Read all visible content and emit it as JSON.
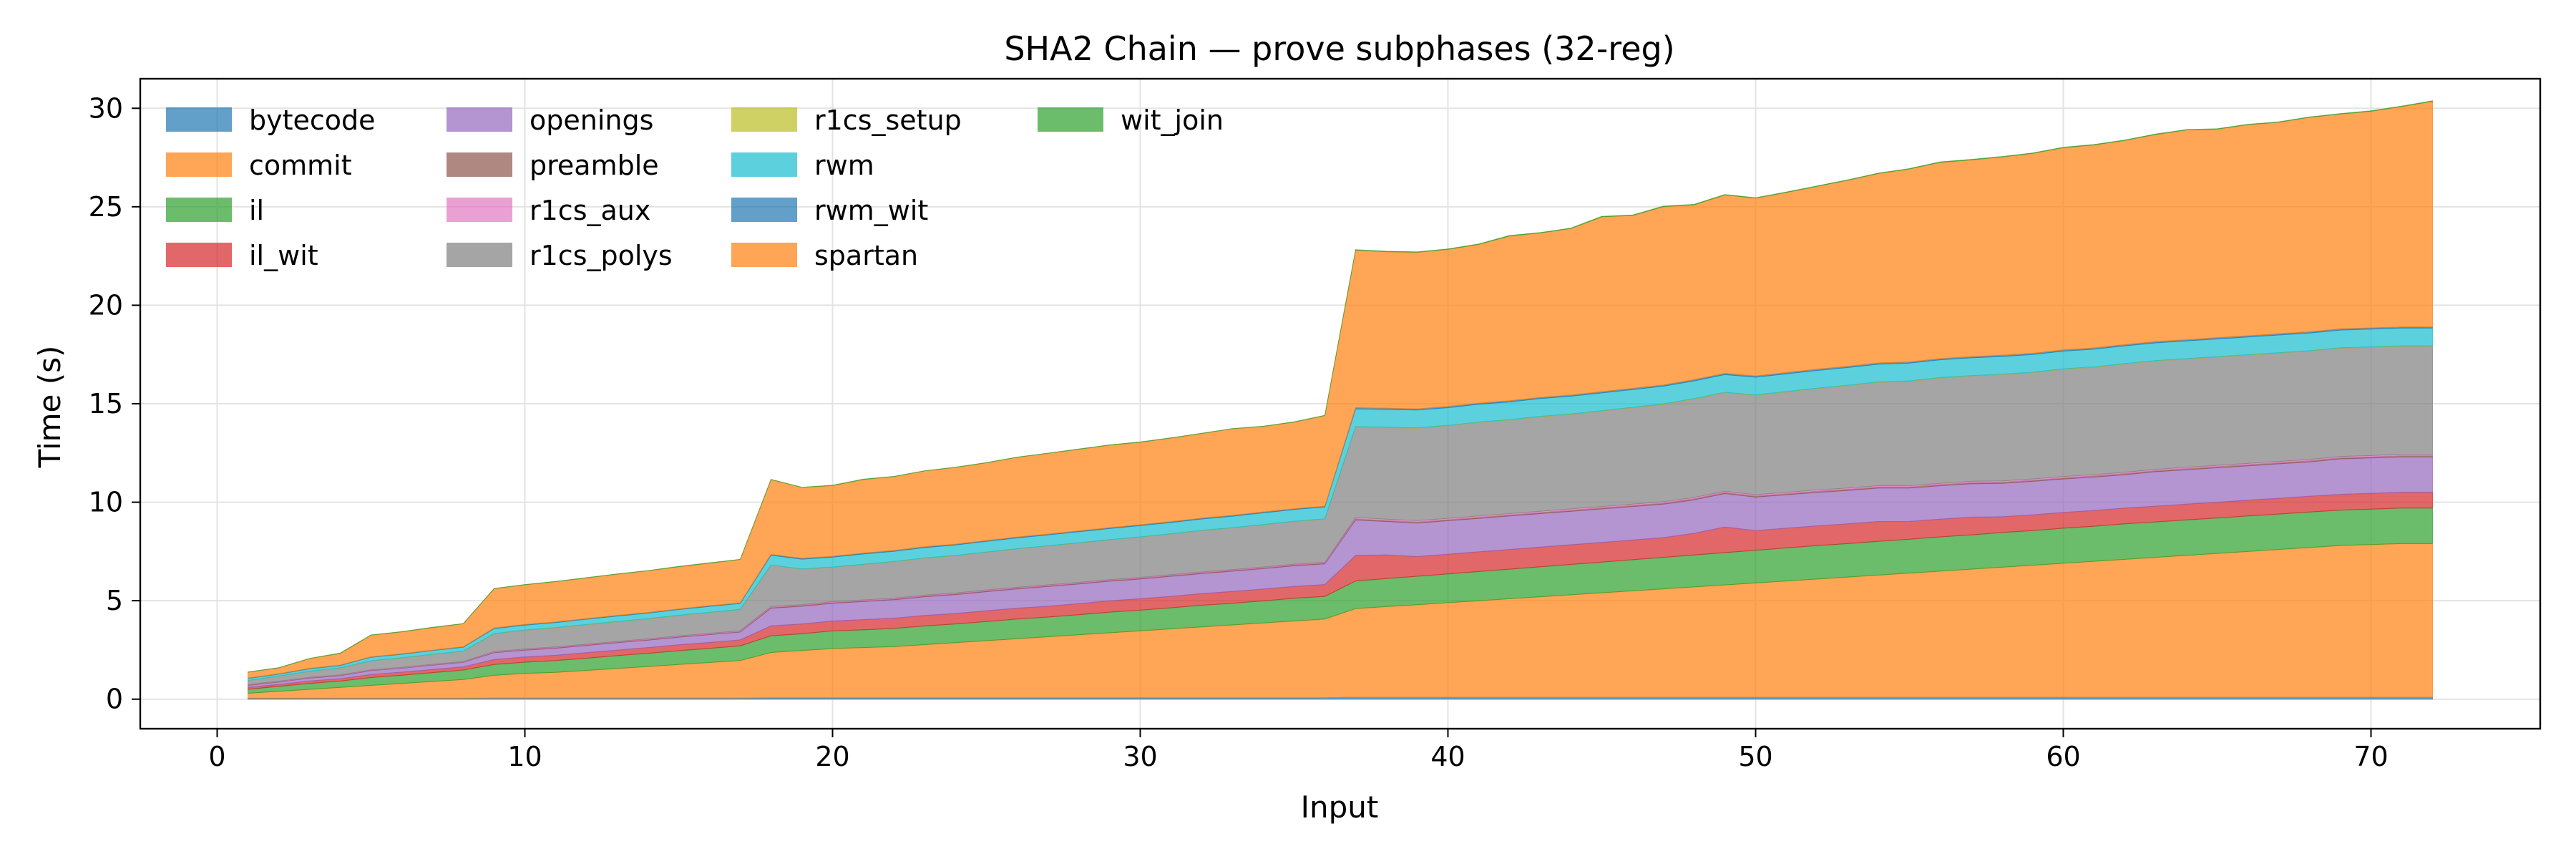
{
  "chart_data": {
    "type": "area",
    "stacked": true,
    "title": "SHA2 Chain — prove subphases (32-reg)",
    "xlabel": "Input",
    "ylabel": "Time (s)",
    "xlim": [
      -2.5,
      75.5
    ],
    "ylim": [
      -1.5,
      31.5
    ],
    "xticks": [
      0,
      10,
      20,
      30,
      40,
      50,
      60,
      70
    ],
    "yticks": [
      0,
      5,
      10,
      15,
      20,
      25,
      30
    ],
    "grid": true,
    "legend_position": "top-left",
    "legend_columns": 4,
    "x": [
      1,
      2,
      3,
      4,
      5,
      6,
      7,
      8,
      9,
      10,
      11,
      12,
      13,
      14,
      15,
      16,
      17,
      18,
      19,
      20,
      21,
      22,
      23,
      24,
      25,
      26,
      27,
      28,
      29,
      30,
      31,
      32,
      33,
      34,
      35,
      36,
      37,
      38,
      39,
      40,
      41,
      42,
      43,
      44,
      45,
      46,
      47,
      48,
      49,
      50,
      51,
      52,
      53,
      54,
      55,
      56,
      57,
      58,
      59,
      60,
      61,
      62,
      63,
      64,
      65,
      66,
      67,
      68,
      69,
      70,
      71,
      72
    ],
    "series": [
      {
        "name": "bytecode",
        "color": "#1f77b4",
        "values": [
          0.05,
          0.05,
          0.05,
          0.05,
          0.05,
          0.05,
          0.05,
          0.05,
          0.06,
          0.06,
          0.06,
          0.06,
          0.06,
          0.06,
          0.06,
          0.06,
          0.06,
          0.07,
          0.07,
          0.07,
          0.07,
          0.07,
          0.07,
          0.07,
          0.07,
          0.07,
          0.07,
          0.07,
          0.07,
          0.07,
          0.07,
          0.07,
          0.07,
          0.07,
          0.07,
          0.07,
          0.1,
          0.1,
          0.1,
          0.1,
          0.1,
          0.1,
          0.1,
          0.1,
          0.1,
          0.1,
          0.1,
          0.1,
          0.1,
          0.1,
          0.1,
          0.1,
          0.1,
          0.1,
          0.1,
          0.1,
          0.1,
          0.1,
          0.1,
          0.1,
          0.1,
          0.1,
          0.1,
          0.1,
          0.1,
          0.1,
          0.1,
          0.1,
          0.1,
          0.1,
          0.1,
          0.1
        ]
      },
      {
        "name": "commit",
        "color": "#ff7f0e",
        "values": [
          0.25,
          0.35,
          0.45,
          0.55,
          0.65,
          0.75,
          0.85,
          0.95,
          1.15,
          1.25,
          1.3,
          1.4,
          1.5,
          1.6,
          1.7,
          1.8,
          1.9,
          2.3,
          2.4,
          2.5,
          2.55,
          2.6,
          2.7,
          2.8,
          2.9,
          3.0,
          3.1,
          3.2,
          3.3,
          3.4,
          3.5,
          3.6,
          3.7,
          3.8,
          3.9,
          4.0,
          4.5,
          4.6,
          4.7,
          4.8,
          4.9,
          5.0,
          5.1,
          5.2,
          5.3,
          5.4,
          5.5,
          5.6,
          5.7,
          5.8,
          5.9,
          6.0,
          6.1,
          6.2,
          6.3,
          6.4,
          6.5,
          6.6,
          6.7,
          6.8,
          6.9,
          7.0,
          7.1,
          7.2,
          7.3,
          7.4,
          7.5,
          7.6,
          7.7,
          7.75,
          7.8,
          7.8
        ]
      },
      {
        "name": "il",
        "color": "#2ca02c",
        "values": [
          0.2,
          0.25,
          0.3,
          0.32,
          0.4,
          0.42,
          0.45,
          0.48,
          0.55,
          0.57,
          0.6,
          0.62,
          0.65,
          0.67,
          0.7,
          0.72,
          0.75,
          0.85,
          0.85,
          0.9,
          0.9,
          0.92,
          0.95,
          0.95,
          0.97,
          1.0,
          1.0,
          1.02,
          1.05,
          1.05,
          1.07,
          1.1,
          1.1,
          1.12,
          1.15,
          1.15,
          1.4,
          1.42,
          1.44,
          1.46,
          1.48,
          1.5,
          1.52,
          1.54,
          1.56,
          1.58,
          1.6,
          1.62,
          1.64,
          1.66,
          1.68,
          1.7,
          1.7,
          1.72,
          1.72,
          1.74,
          1.74,
          1.76,
          1.76,
          1.78,
          1.78,
          1.8,
          1.8,
          1.8,
          1.8,
          1.8,
          1.8,
          1.8,
          1.8,
          1.8,
          1.8,
          1.8
        ]
      },
      {
        "name": "il_wit",
        "color": "#d62728",
        "values": [
          0.1,
          0.1,
          0.12,
          0.12,
          0.15,
          0.15,
          0.16,
          0.16,
          0.25,
          0.26,
          0.27,
          0.28,
          0.28,
          0.29,
          0.3,
          0.3,
          0.3,
          0.5,
          0.5,
          0.5,
          0.52,
          0.52,
          0.53,
          0.53,
          0.55,
          0.55,
          0.55,
          0.56,
          0.57,
          0.58,
          0.58,
          0.59,
          0.6,
          0.6,
          0.6,
          0.6,
          1.3,
          1.2,
          1.0,
          1.0,
          1.0,
          1.0,
          1.0,
          1.0,
          1.0,
          1.0,
          1.0,
          1.1,
          1.3,
          1.0,
          1.0,
          1.0,
          1.0,
          1.0,
          0.9,
          0.9,
          0.9,
          0.8,
          0.8,
          0.8,
          0.8,
          0.8,
          0.8,
          0.8,
          0.8,
          0.8,
          0.8,
          0.8,
          0.8,
          0.8,
          0.8,
          0.8
        ]
      },
      {
        "name": "openings",
        "color": "#9467bd",
        "values": [
          0.1,
          0.12,
          0.15,
          0.15,
          0.2,
          0.2,
          0.22,
          0.23,
          0.35,
          0.35,
          0.36,
          0.37,
          0.38,
          0.38,
          0.39,
          0.4,
          0.4,
          0.9,
          0.9,
          0.9,
          0.92,
          0.94,
          0.95,
          0.96,
          0.97,
          0.98,
          1.0,
          1.0,
          1.0,
          1.0,
          1.02,
          1.02,
          1.03,
          1.04,
          1.05,
          1.05,
          1.8,
          1.7,
          1.7,
          1.7,
          1.7,
          1.7,
          1.7,
          1.7,
          1.7,
          1.7,
          1.7,
          1.7,
          1.7,
          1.7,
          1.7,
          1.7,
          1.7,
          1.7,
          1.7,
          1.7,
          1.7,
          1.7,
          1.7,
          1.7,
          1.7,
          1.7,
          1.75,
          1.75,
          1.75,
          1.75,
          1.75,
          1.75,
          1.8,
          1.8,
          1.8,
          1.8
        ]
      },
      {
        "name": "preamble",
        "color": "#8c564b",
        "values": [
          0.02,
          0.02,
          0.02,
          0.02,
          0.02,
          0.02,
          0.02,
          0.02,
          0.03,
          0.03,
          0.03,
          0.03,
          0.03,
          0.03,
          0.03,
          0.03,
          0.03,
          0.04,
          0.04,
          0.04,
          0.04,
          0.04,
          0.04,
          0.04,
          0.04,
          0.04,
          0.04,
          0.04,
          0.04,
          0.04,
          0.04,
          0.04,
          0.04,
          0.04,
          0.04,
          0.04,
          0.06,
          0.06,
          0.06,
          0.06,
          0.06,
          0.06,
          0.06,
          0.06,
          0.06,
          0.06,
          0.06,
          0.06,
          0.06,
          0.06,
          0.06,
          0.06,
          0.06,
          0.06,
          0.06,
          0.06,
          0.06,
          0.06,
          0.06,
          0.06,
          0.06,
          0.06,
          0.06,
          0.06,
          0.06,
          0.06,
          0.06,
          0.06,
          0.06,
          0.06,
          0.06,
          0.06
        ]
      },
      {
        "name": "r1cs_aux",
        "color": "#e377c2",
        "values": [
          0.02,
          0.02,
          0.02,
          0.02,
          0.02,
          0.02,
          0.02,
          0.02,
          0.03,
          0.03,
          0.03,
          0.03,
          0.03,
          0.03,
          0.03,
          0.03,
          0.03,
          0.04,
          0.04,
          0.04,
          0.04,
          0.04,
          0.04,
          0.04,
          0.04,
          0.04,
          0.04,
          0.04,
          0.04,
          0.04,
          0.04,
          0.04,
          0.04,
          0.04,
          0.04,
          0.04,
          0.06,
          0.06,
          0.06,
          0.06,
          0.06,
          0.06,
          0.06,
          0.06,
          0.06,
          0.06,
          0.06,
          0.06,
          0.06,
          0.06,
          0.06,
          0.06,
          0.06,
          0.06,
          0.06,
          0.06,
          0.06,
          0.06,
          0.06,
          0.06,
          0.06,
          0.06,
          0.06,
          0.06,
          0.06,
          0.06,
          0.06,
          0.06,
          0.06,
          0.06,
          0.06,
          0.06
        ]
      },
      {
        "name": "r1cs_polys",
        "color": "#7f7f7f",
        "values": [
          0.2,
          0.25,
          0.3,
          0.35,
          0.45,
          0.48,
          0.5,
          0.52,
          0.9,
          0.95,
          0.97,
          0.99,
          1.0,
          1.02,
          1.04,
          1.06,
          1.08,
          2.1,
          1.8,
          1.75,
          1.8,
          1.85,
          1.88,
          1.9,
          1.92,
          1.95,
          1.98,
          2.0,
          2.02,
          2.05,
          2.07,
          2.1,
          2.12,
          2.15,
          2.17,
          2.2,
          4.6,
          4.65,
          4.7,
          4.7,
          4.75,
          4.75,
          4.8,
          4.8,
          4.85,
          4.9,
          4.95,
          5.0,
          5.0,
          5.05,
          5.1,
          5.15,
          5.2,
          5.25,
          5.3,
          5.35,
          5.35,
          5.4,
          5.4,
          5.45,
          5.45,
          5.5,
          5.5,
          5.5,
          5.5,
          5.5,
          5.5,
          5.5,
          5.5,
          5.5,
          5.5,
          5.5
        ]
      },
      {
        "name": "r1cs_setup",
        "color": "#bcbd22",
        "values": [
          0.01,
          0.01,
          0.01,
          0.01,
          0.01,
          0.01,
          0.01,
          0.01,
          0.01,
          0.01,
          0.01,
          0.01,
          0.01,
          0.01,
          0.01,
          0.01,
          0.01,
          0.01,
          0.01,
          0.01,
          0.01,
          0.01,
          0.01,
          0.01,
          0.01,
          0.01,
          0.01,
          0.01,
          0.01,
          0.01,
          0.01,
          0.01,
          0.01,
          0.01,
          0.01,
          0.01,
          0.02,
          0.02,
          0.02,
          0.02,
          0.02,
          0.02,
          0.02,
          0.02,
          0.02,
          0.02,
          0.02,
          0.02,
          0.02,
          0.02,
          0.02,
          0.02,
          0.02,
          0.02,
          0.02,
          0.02,
          0.02,
          0.02,
          0.02,
          0.02,
          0.02,
          0.02,
          0.02,
          0.02,
          0.02,
          0.02,
          0.02,
          0.02,
          0.02,
          0.02,
          0.02,
          0.02
        ]
      },
      {
        "name": "rwm",
        "color": "#17becf",
        "values": [
          0.1,
          0.1,
          0.12,
          0.12,
          0.18,
          0.18,
          0.19,
          0.2,
          0.25,
          0.25,
          0.26,
          0.27,
          0.28,
          0.28,
          0.29,
          0.3,
          0.3,
          0.5,
          0.5,
          0.5,
          0.52,
          0.52,
          0.53,
          0.53,
          0.54,
          0.55,
          0.55,
          0.56,
          0.56,
          0.57,
          0.57,
          0.58,
          0.58,
          0.59,
          0.6,
          0.6,
          0.9,
          0.9,
          0.9,
          0.9,
          0.9,
          0.9,
          0.9,
          0.9,
          0.9,
          0.9,
          0.9,
          0.9,
          0.9,
          0.9,
          0.9,
          0.9,
          0.9,
          0.9,
          0.9,
          0.9,
          0.9,
          0.9,
          0.9,
          0.9,
          0.9,
          0.9,
          0.9,
          0.9,
          0.9,
          0.9,
          0.9,
          0.9,
          0.9,
          0.9,
          0.9,
          0.9
        ]
      },
      {
        "name": "rwm_wit",
        "color": "#1f77b4",
        "values": [
          0.02,
          0.02,
          0.02,
          0.02,
          0.02,
          0.02,
          0.02,
          0.02,
          0.03,
          0.03,
          0.03,
          0.03,
          0.03,
          0.03,
          0.03,
          0.03,
          0.03,
          0.04,
          0.04,
          0.04,
          0.04,
          0.04,
          0.04,
          0.04,
          0.04,
          0.04,
          0.04,
          0.04,
          0.04,
          0.04,
          0.04,
          0.04,
          0.04,
          0.04,
          0.04,
          0.04,
          0.06,
          0.06,
          0.06,
          0.06,
          0.06,
          0.06,
          0.06,
          0.06,
          0.06,
          0.06,
          0.06,
          0.06,
          0.06,
          0.06,
          0.06,
          0.06,
          0.06,
          0.06,
          0.06,
          0.06,
          0.06,
          0.06,
          0.06,
          0.06,
          0.06,
          0.06,
          0.06,
          0.06,
          0.06,
          0.06,
          0.06,
          0.06,
          0.06,
          0.06,
          0.06,
          0.06
        ]
      },
      {
        "name": "spartan",
        "color": "#ff7f0e",
        "values": [
          0.3,
          0.3,
          0.5,
          0.6,
          1.1,
          1.12,
          1.15,
          1.17,
          2.0,
          2.02,
          2.05,
          2.07,
          2.1,
          2.12,
          2.15,
          2.17,
          2.2,
          3.8,
          3.6,
          3.6,
          3.75,
          3.75,
          3.85,
          3.9,
          3.95,
          4.05,
          4.1,
          4.15,
          4.2,
          4.2,
          4.25,
          4.3,
          4.4,
          4.35,
          4.4,
          4.6,
          8.0,
          7.95,
          7.95,
          7.98,
          8.06,
          8.37,
          8.35,
          8.46,
          8.88,
          8.78,
          9.06,
          8.88,
          9.06,
          9.03,
          9.15,
          9.29,
          9.45,
          9.62,
          9.8,
          9.97,
          9.99,
          10.07,
          10.15,
          10.27,
          10.31,
          10.37,
          10.52,
          10.65,
          10.59,
          10.72,
          10.74,
          10.89,
          10.91,
          11.0,
          11.19,
          11.46
        ]
      },
      {
        "name": "wit_join",
        "color": "#2ca02c",
        "values": [
          0.01,
          0.01,
          0.01,
          0.01,
          0.01,
          0.01,
          0.01,
          0.01,
          0.01,
          0.01,
          0.01,
          0.01,
          0.01,
          0.01,
          0.01,
          0.01,
          0.01,
          0.01,
          0.01,
          0.01,
          0.01,
          0.01,
          0.01,
          0.01,
          0.01,
          0.01,
          0.01,
          0.01,
          0.01,
          0.01,
          0.01,
          0.01,
          0.01,
          0.01,
          0.01,
          0.01,
          0.02,
          0.02,
          0.02,
          0.02,
          0.02,
          0.02,
          0.02,
          0.02,
          0.02,
          0.02,
          0.02,
          0.02,
          0.02,
          0.02,
          0.02,
          0.02,
          0.02,
          0.02,
          0.02,
          0.02,
          0.02,
          0.02,
          0.02,
          0.02,
          0.02,
          0.02,
          0.02,
          0.02,
          0.02,
          0.02,
          0.02,
          0.02,
          0.02,
          0.02,
          0.02,
          0.02
        ]
      }
    ]
  }
}
